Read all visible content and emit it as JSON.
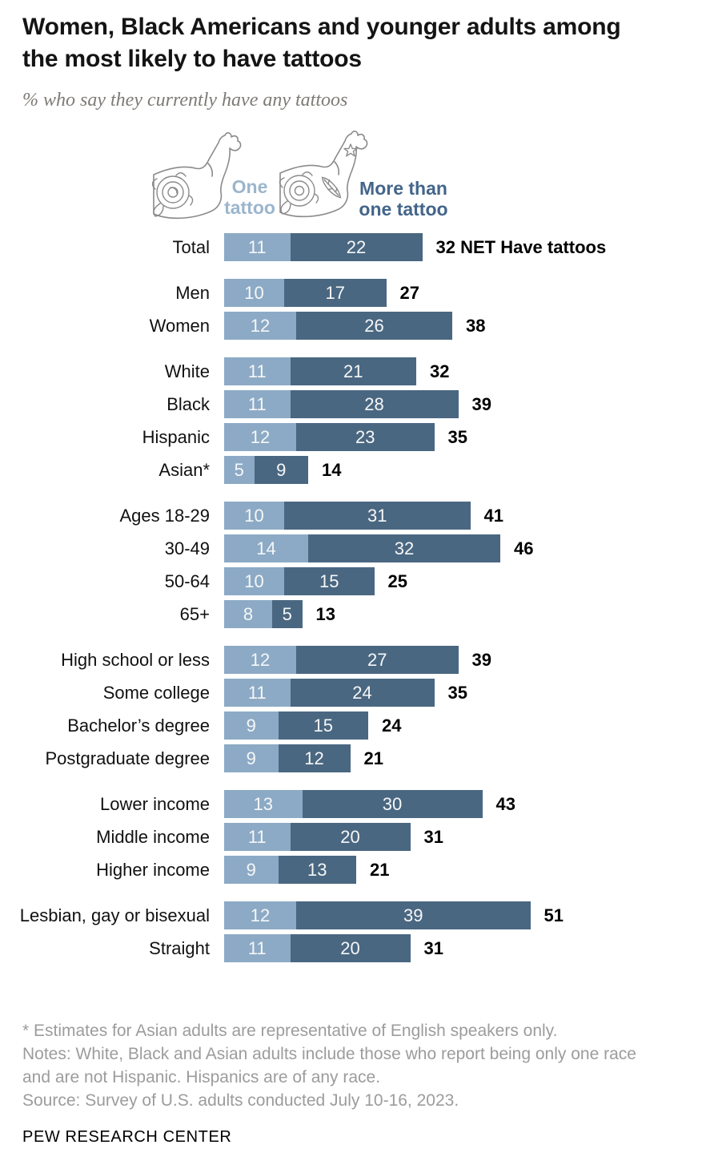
{
  "header": {
    "title": "Women, Black Americans and younger adults among the most likely to have tattoos",
    "title_lines": [
      "Women, Black Americans and younger adults among",
      "the most likely to have tattoos"
    ],
    "subtitle": "% who say they currently have any tattoos"
  },
  "legend": {
    "one": {
      "label": "One tattoo",
      "text_color": "#9BB5CD",
      "icon": "arm-with-one-tattoo"
    },
    "more": {
      "label": "More than one tattoo",
      "text_color": "#44658A",
      "icon": "arm-with-multiple-tattoos"
    }
  },
  "chart_data": {
    "type": "bar",
    "orientation": "horizontal",
    "stacked": true,
    "unit": "%",
    "series_names": [
      "One tattoo",
      "More than one tattoo"
    ],
    "colors": {
      "one": "#8CAAC5",
      "more": "#4A6781"
    },
    "value_label_color": "#F5F7F8",
    "x_range": [
      0,
      51
    ],
    "net_label_suffix_total": "NET Have tattoos",
    "groups": [
      {
        "name": "total",
        "rows": [
          {
            "label": "Total",
            "one": 11,
            "more": 22,
            "net": 32,
            "net_suffix": "NET Have tattoos"
          }
        ]
      },
      {
        "name": "gender",
        "rows": [
          {
            "label": "Men",
            "one": 10,
            "more": 17,
            "net": 27
          },
          {
            "label": "Women",
            "one": 12,
            "more": 26,
            "net": 38
          }
        ]
      },
      {
        "name": "race-ethnicity",
        "rows": [
          {
            "label": "White",
            "one": 11,
            "more": 21,
            "net": 32
          },
          {
            "label": "Black",
            "one": 11,
            "more": 28,
            "net": 39
          },
          {
            "label": "Hispanic",
            "one": 12,
            "more": 23,
            "net": 35
          },
          {
            "label": "Asian*",
            "one": 5,
            "more": 9,
            "net": 14
          }
        ]
      },
      {
        "name": "age",
        "rows": [
          {
            "label": "Ages 18-29",
            "one": 10,
            "more": 31,
            "net": 41
          },
          {
            "label": "30-49",
            "one": 14,
            "more": 32,
            "net": 46
          },
          {
            "label": "50-64",
            "one": 10,
            "more": 15,
            "net": 25
          },
          {
            "label": "65+",
            "one": 8,
            "more": 5,
            "net": 13
          }
        ]
      },
      {
        "name": "education",
        "rows": [
          {
            "label": "High school or less",
            "one": 12,
            "more": 27,
            "net": 39
          },
          {
            "label": "Some college",
            "one": 11,
            "more": 24,
            "net": 35
          },
          {
            "label": "Bachelor’s degree",
            "one": 9,
            "more": 15,
            "net": 24
          },
          {
            "label": "Postgraduate degree",
            "one": 9,
            "more": 12,
            "net": 21
          }
        ]
      },
      {
        "name": "income",
        "rows": [
          {
            "label": "Lower income",
            "one": 13,
            "more": 30,
            "net": 43
          },
          {
            "label": "Middle income",
            "one": 11,
            "more": 20,
            "net": 31
          },
          {
            "label": "Higher income",
            "one": 9,
            "more": 13,
            "net": 21
          }
        ]
      },
      {
        "name": "sexual-orientation",
        "rows": [
          {
            "label": "Lesbian, gay or bisexual",
            "one": 12,
            "more": 39,
            "net": 51
          },
          {
            "label": "Straight",
            "one": 11,
            "more": 20,
            "net": 31
          }
        ]
      }
    ]
  },
  "footer": {
    "asterisk": "* Estimates for Asian adults are representative of English speakers only.",
    "notes": "Notes: White, Black and Asian adults include those who report being only one race and are not Hispanic. Hispanics are of any race.",
    "source": "Source: Survey of U.S. adults conducted July 10-16, 2023.",
    "wordmark": "PEW RESEARCH CENTER"
  }
}
